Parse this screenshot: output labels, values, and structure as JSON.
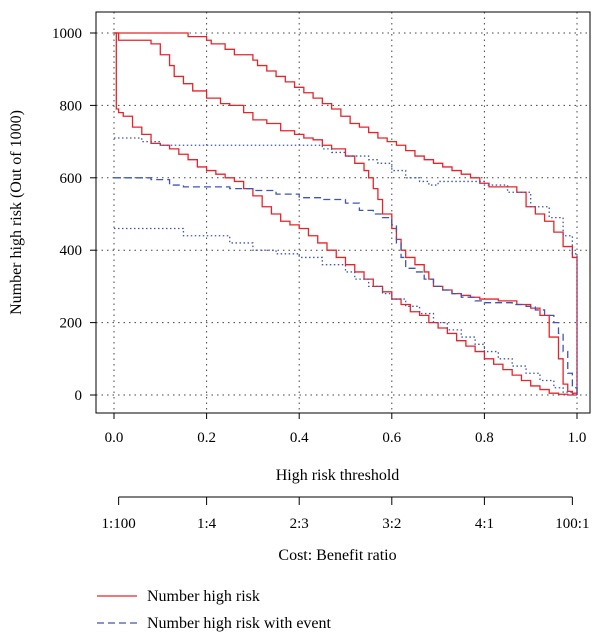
{
  "chart_data": {
    "type": "line",
    "xlabel": "High risk threshold",
    "ylabel": "Number high risk (Out of 1000)",
    "xlim": [
      0,
      1
    ],
    "ylim": [
      0,
      1000
    ],
    "x_ticks": [
      "0.0",
      "0.2",
      "0.4",
      "0.6",
      "0.8",
      "1.0"
    ],
    "y_ticks": [
      "0",
      "200",
      "400",
      "600",
      "800",
      "1000"
    ],
    "x_tick_values": [
      0,
      0.2,
      0.4,
      0.6,
      0.8,
      1.0
    ],
    "y_tick_values": [
      0,
      200,
      400,
      600,
      800,
      1000
    ],
    "grid": true,
    "cost_benefit_axis": {
      "title": "Cost: Benefit ratio",
      "labels": [
        "1:100",
        "1:4",
        "2:3",
        "3:2",
        "4:1",
        "100:1"
      ],
      "positions": [
        0.01,
        0.2,
        0.4,
        0.6,
        0.8,
        0.99
      ]
    },
    "legend": {
      "placement": "bottom-left",
      "entries": [
        {
          "label": "Number high risk",
          "color": "#e8242b",
          "dash": "solid"
        },
        {
          "label": "Number high risk with event",
          "color": "#3d56b5",
          "dash": "dashed"
        }
      ]
    },
    "series": [
      {
        "role": "upper",
        "metric": "Number high risk",
        "color": "#e8242b",
        "dash": "solid",
        "x": [
          0.0,
          0.15,
          0.16,
          0.2,
          0.21,
          0.24,
          0.26,
          0.3,
          0.31,
          0.33,
          0.35,
          0.37,
          0.39,
          0.41,
          0.43,
          0.45,
          0.47,
          0.49,
          0.51,
          0.53,
          0.55,
          0.57,
          0.59,
          0.61,
          0.63,
          0.65,
          0.67,
          0.69,
          0.71,
          0.73,
          0.75,
          0.77,
          0.79,
          0.81,
          0.83,
          0.85,
          0.87,
          0.89,
          0.91,
          0.93,
          0.95,
          0.97,
          0.99,
          1.0
        ],
        "y": [
          1000,
          1000,
          990,
          980,
          970,
          955,
          940,
          925,
          910,
          895,
          880,
          865,
          850,
          835,
          820,
          805,
          790,
          770,
          750,
          740,
          725,
          710,
          700,
          690,
          675,
          660,
          650,
          640,
          630,
          620,
          610,
          600,
          585,
          575,
          575,
          575,
          560,
          520,
          500,
          480,
          450,
          410,
          380,
          0
        ]
      },
      {
        "role": "middle",
        "metric": "Number high risk",
        "color": "#e8242b",
        "dash": "solid",
        "x": [
          0.0,
          0.01,
          0.02,
          0.05,
          0.08,
          0.1,
          0.12,
          0.13,
          0.15,
          0.17,
          0.2,
          0.23,
          0.25,
          0.28,
          0.3,
          0.33,
          0.36,
          0.39,
          0.41,
          0.43,
          0.45,
          0.47,
          0.5,
          0.52,
          0.54,
          0.55,
          0.56,
          0.57,
          0.58,
          0.6,
          0.61,
          0.62,
          0.63,
          0.65,
          0.67,
          0.68,
          0.69,
          0.71,
          0.73,
          0.75,
          0.77,
          0.79,
          0.81,
          0.83,
          0.85,
          0.87,
          0.9,
          0.92,
          0.94,
          0.96,
          0.97,
          0.98,
          0.99,
          1.0
        ],
        "y": [
          1000,
          980,
          980,
          980,
          970,
          940,
          910,
          880,
          860,
          840,
          820,
          805,
          800,
          780,
          760,
          750,
          730,
          720,
          710,
          705,
          690,
          680,
          660,
          640,
          620,
          600,
          570,
          540,
          500,
          460,
          430,
          400,
          380,
          360,
          340,
          320,
          300,
          290,
          280,
          275,
          270,
          265,
          265,
          260,
          260,
          250,
          240,
          220,
          160,
          100,
          30,
          10,
          5,
          0
        ]
      },
      {
        "role": "lower",
        "metric": "Number high risk",
        "color": "#e8242b",
        "dash": "solid",
        "x": [
          0.0,
          0.005,
          0.01,
          0.02,
          0.04,
          0.06,
          0.08,
          0.1,
          0.12,
          0.14,
          0.16,
          0.18,
          0.2,
          0.22,
          0.24,
          0.26,
          0.28,
          0.3,
          0.32,
          0.34,
          0.36,
          0.38,
          0.4,
          0.42,
          0.44,
          0.46,
          0.48,
          0.5,
          0.52,
          0.54,
          0.56,
          0.58,
          0.6,
          0.62,
          0.64,
          0.66,
          0.68,
          0.7,
          0.72,
          0.74,
          0.76,
          0.78,
          0.8,
          0.82,
          0.84,
          0.86,
          0.88,
          0.9,
          0.92,
          0.94,
          0.96,
          0.98,
          1.0
        ],
        "y": [
          1000,
          790,
          780,
          770,
          740,
          720,
          695,
          690,
          680,
          665,
          650,
          630,
          620,
          610,
          600,
          590,
          570,
          550,
          520,
          500,
          480,
          470,
          460,
          440,
          420,
          400,
          380,
          360,
          340,
          320,
          300,
          285,
          265,
          250,
          230,
          220,
          200,
          185,
          170,
          150,
          135,
          120,
          100,
          85,
          70,
          55,
          40,
          25,
          15,
          5,
          2,
          0,
          0
        ]
      },
      {
        "role": "upper",
        "metric": "Number high risk with event",
        "color": "#3d56b5",
        "dash": "dotted",
        "x": [
          0.0,
          0.04,
          0.06,
          0.1,
          0.15,
          0.2,
          0.25,
          0.3,
          0.35,
          0.4,
          0.45,
          0.47,
          0.5,
          0.55,
          0.57,
          0.6,
          0.63,
          0.66,
          0.68,
          0.7,
          0.72,
          0.75,
          0.8,
          0.85,
          0.9,
          0.94,
          0.97,
          0.99,
          1.0
        ],
        "y": [
          710,
          710,
          700,
          690,
          690,
          690,
          690,
          690,
          690,
          690,
          680,
          670,
          660,
          650,
          640,
          620,
          600,
          590,
          580,
          590,
          590,
          590,
          580,
          560,
          520,
          490,
          440,
          390,
          0
        ]
      },
      {
        "role": "middle",
        "metric": "Number high risk with event",
        "color": "#3d56b5",
        "dash": "dashed",
        "x": [
          0.0,
          0.05,
          0.08,
          0.12,
          0.15,
          0.2,
          0.25,
          0.3,
          0.35,
          0.4,
          0.45,
          0.5,
          0.53,
          0.56,
          0.58,
          0.6,
          0.61,
          0.62,
          0.63,
          0.65,
          0.67,
          0.69,
          0.71,
          0.73,
          0.75,
          0.78,
          0.8,
          0.83,
          0.86,
          0.89,
          0.91,
          0.93,
          0.95,
          0.96,
          0.97,
          0.98,
          0.99,
          1.0
        ],
        "y": [
          600,
          600,
          595,
          580,
          575,
          575,
          570,
          565,
          555,
          545,
          540,
          530,
          510,
          500,
          490,
          470,
          420,
          380,
          350,
          340,
          320,
          300,
          290,
          280,
          270,
          260,
          255,
          255,
          250,
          245,
          235,
          220,
          200,
          170,
          120,
          60,
          20,
          0
        ]
      },
      {
        "role": "lower",
        "metric": "Number high risk with event",
        "color": "#3d56b5",
        "dash": "dotted",
        "x": [
          0.0,
          0.05,
          0.1,
          0.15,
          0.2,
          0.25,
          0.3,
          0.35,
          0.4,
          0.45,
          0.5,
          0.52,
          0.55,
          0.58,
          0.6,
          0.63,
          0.66,
          0.69,
          0.72,
          0.75,
          0.78,
          0.8,
          0.83,
          0.86,
          0.89,
          0.92,
          0.95,
          0.97,
          0.99,
          1.0
        ],
        "y": [
          460,
          460,
          460,
          440,
          440,
          420,
          400,
          390,
          380,
          360,
          340,
          320,
          300,
          280,
          265,
          245,
          225,
          200,
          180,
          160,
          140,
          120,
          100,
          80,
          60,
          40,
          20,
          8,
          2,
          0
        ]
      }
    ]
  }
}
